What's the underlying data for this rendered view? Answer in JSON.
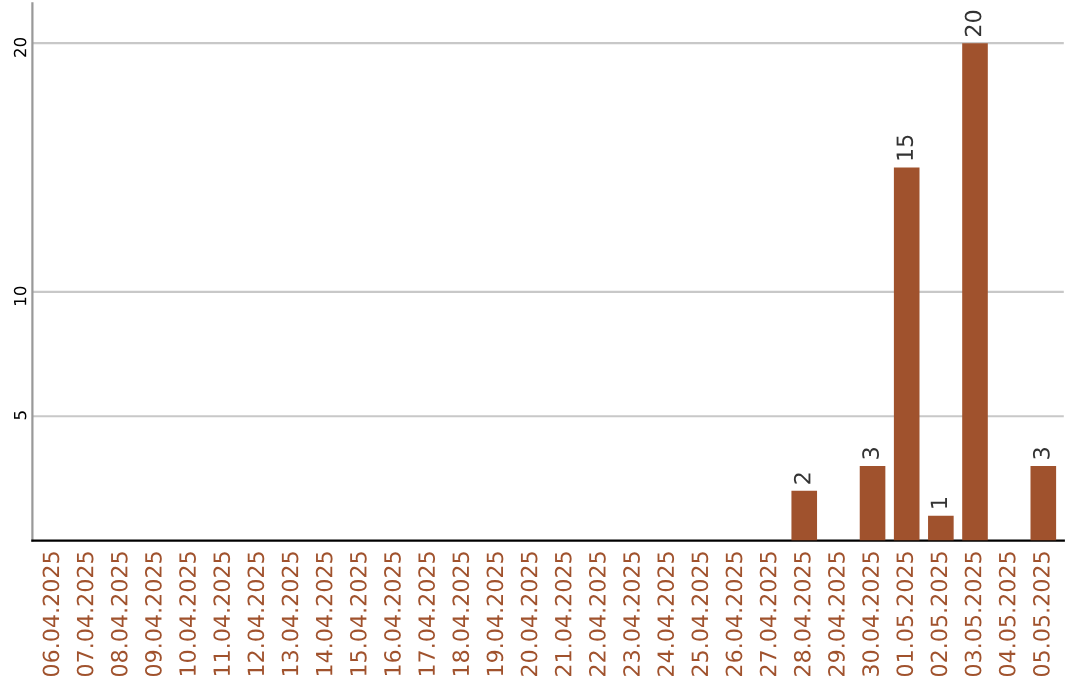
{
  "chart_data": {
    "type": "bar",
    "categories": [
      "06.04.2025",
      "07.04.2025",
      "08.04.2025",
      "09.04.2025",
      "10.04.2025",
      "11.04.2025",
      "12.04.2025",
      "13.04.2025",
      "14.04.2025",
      "15.04.2025",
      "16.04.2025",
      "17.04.2025",
      "18.04.2025",
      "19.04.2025",
      "20.04.2025",
      "21.04.2025",
      "22.04.2025",
      "23.04.2025",
      "24.04.2025",
      "25.04.2025",
      "26.04.2025",
      "27.04.2025",
      "28.04.2025",
      "29.04.2025",
      "30.04.2025",
      "01.05.2025",
      "02.05.2025",
      "03.05.2025",
      "04.05.2025",
      "05.05.2025"
    ],
    "values": [
      0,
      0,
      0,
      0,
      0,
      0,
      0,
      0,
      0,
      0,
      0,
      0,
      0,
      0,
      0,
      0,
      0,
      0,
      0,
      0,
      0,
      0,
      2,
      0,
      3,
      15,
      1,
      20,
      0,
      3
    ],
    "value_labels": [
      null,
      null,
      null,
      null,
      null,
      null,
      null,
      null,
      null,
      null,
      null,
      null,
      null,
      null,
      null,
      null,
      null,
      null,
      null,
      null,
      null,
      null,
      "2",
      null,
      "3",
      "15",
      "1",
      "20",
      null,
      "3"
    ],
    "color": "#a0522d",
    "ylim": [
      0,
      21.6
    ],
    "yticks": [
      5,
      10,
      20
    ],
    "grid": "y"
  }
}
